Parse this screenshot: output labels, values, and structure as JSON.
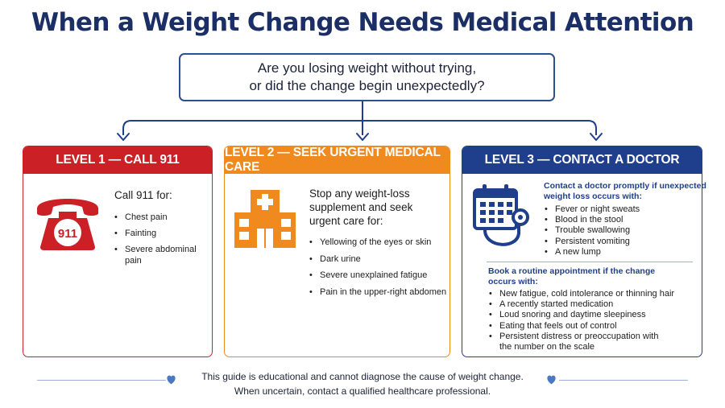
{
  "title": "When a Weight Change Needs Medical Attention",
  "question": {
    "line1": "Are you losing weight without trying,",
    "line2": "or did the change begin unexpectedly?"
  },
  "level1": {
    "header": "LEVEL 1 — CALL 911",
    "icon": "phone-911-icon",
    "icon_label": "911",
    "lead": "Call 911 for:",
    "items": [
      "Chest pain",
      "Fainting",
      "Severe abdominal pain"
    ]
  },
  "level2": {
    "header": "LEVEL 2 — SEEK URGENT MEDICAL CARE",
    "icon": "hospital-icon",
    "lead_lines": [
      "Stop any weight-loss",
      "supplement and seek",
      "urgent care for:"
    ],
    "items": [
      "Yellowing of the eyes or skin",
      "Dark urine",
      "Severe unexplained fatigue",
      "Pain in the upper-right abdomen"
    ]
  },
  "level3": {
    "header": "LEVEL 3 — CONTACT A DOCTOR",
    "icon": "calendar-stethoscope-icon",
    "lead_lines": [
      "Contact a doctor promptly if unexpected",
      "weight loss occurs with:"
    ],
    "items": [
      "Fever or night sweats",
      "Blood in the stool",
      "Trouble swallowing",
      "Persistent vomiting",
      "A new lump"
    ],
    "routine_lines": [
      "Book a routine appointment if the change",
      "occurs with:"
    ],
    "routine_items": [
      "New fatigue, cold intolerance or thinning hair",
      "A recently started medication",
      "Loud snoring and daytime sleepiness",
      "Eating that feels out of control"
    ],
    "routine_last_lines": [
      "Persistent distress or preoccupation with",
      "the number on the scale"
    ]
  },
  "footer": {
    "line1": "This guide is educational and cannot diagnose the cause of weight change.",
    "line2": "When uncertain, contact a qualified healthcare professional."
  },
  "colors": {
    "title": "#1b2f66",
    "level1": "#cc2027",
    "level2": "#f08a1e",
    "level3": "#1f3f8c",
    "connector": "#1f3f8c"
  }
}
